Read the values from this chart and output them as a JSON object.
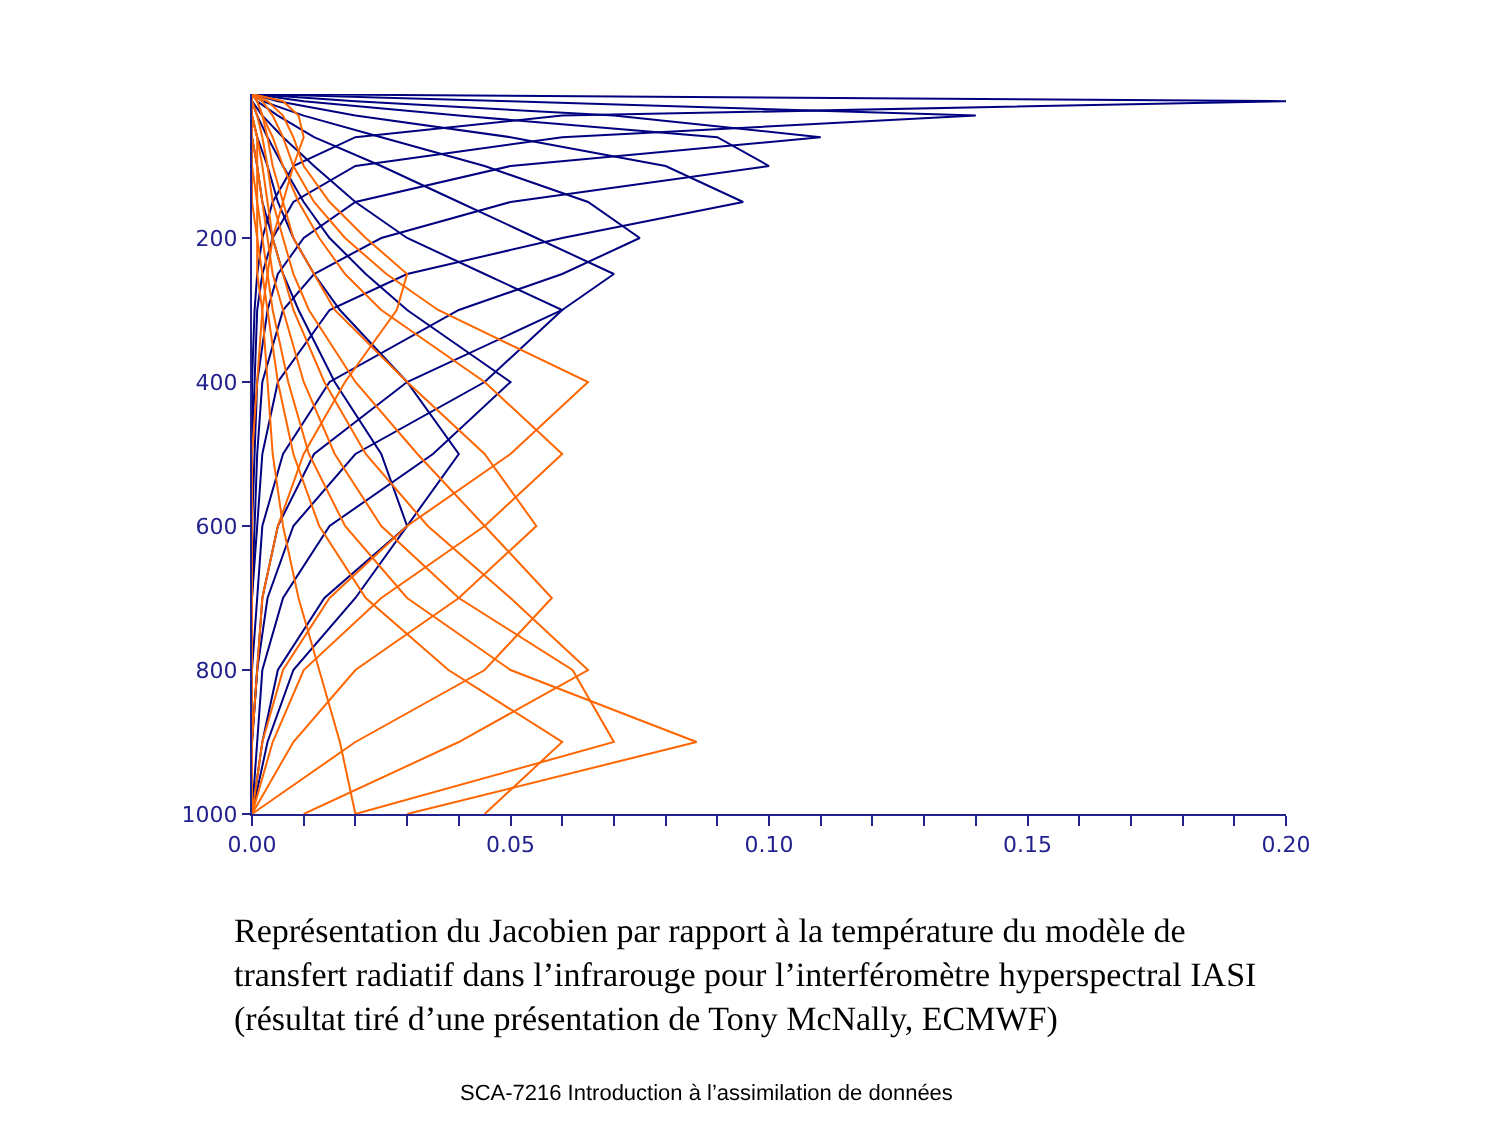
{
  "chart_data": {
    "type": "line",
    "annotations": [
      "Représentation du Jacobien par rapport à la température du modèle de\ntransfert radiatif dans l’infrarouge pour l’interféromètre hyperspectral IASI\n(résultat tiré d’une présentation de Tony McNally, ECMWF)",
      "SCA-7216 Introduction à l’assimilation de données"
    ],
    "xlim": [
      0,
      0.2
    ],
    "ylim": [
      1000,
      0
    ],
    "xticks": [
      {
        "value": 0,
        "label": "0.00"
      },
      {
        "value": 0.01,
        "label": null
      },
      {
        "value": 0.02,
        "label": null
      },
      {
        "value": 0.03,
        "label": null
      },
      {
        "value": 0.04,
        "label": null
      },
      {
        "value": 0.05,
        "label": "0.05"
      },
      {
        "value": 0.06,
        "label": null
      },
      {
        "value": 0.07,
        "label": null
      },
      {
        "value": 0.08,
        "label": null
      },
      {
        "value": 0.09,
        "label": null
      },
      {
        "value": 0.1,
        "label": "0.10"
      },
      {
        "value": 0.11,
        "label": null
      },
      {
        "value": 0.12,
        "label": null
      },
      {
        "value": 0.13,
        "label": null
      },
      {
        "value": 0.14,
        "label": null
      },
      {
        "value": 0.15,
        "label": "0.15"
      },
      {
        "value": 0.16,
        "label": null
      },
      {
        "value": 0.17,
        "label": null
      },
      {
        "value": 0.18,
        "label": null
      },
      {
        "value": 0.19,
        "label": null
      },
      {
        "value": 0.2,
        "label": "0.20"
      }
    ],
    "yticks": [
      200,
      400,
      600,
      800,
      1000
    ],
    "marker": "none",
    "line_style": "solid",
    "series": [
      {
        "color": "#000080",
        "x": [
          0,
          0.2,
          0.06,
          0.02,
          0.008,
          0.004,
          0.002,
          0.001,
          0.0005,
          0,
          0,
          0,
          0,
          0,
          0,
          0
        ],
        "values": [
          0,
          10,
          30,
          60,
          100,
          150,
          200,
          250,
          300,
          400,
          500,
          600,
          700,
          800,
          900,
          1000
        ]
      },
      {
        "color": "#000080",
        "x": [
          0,
          0.05,
          0.14,
          0.06,
          0.02,
          0.008,
          0.004,
          0.002,
          0.001,
          0.0005,
          0,
          0,
          0,
          0,
          0,
          0
        ],
        "values": [
          0,
          10,
          30,
          60,
          100,
          150,
          200,
          250,
          300,
          400,
          500,
          600,
          700,
          800,
          900,
          1000
        ]
      },
      {
        "color": "#000080",
        "x": [
          0,
          0.02,
          0.07,
          0.11,
          0.05,
          0.02,
          0.01,
          0.005,
          0.003,
          0.001,
          0.0005,
          0,
          0,
          0,
          0,
          0
        ],
        "values": [
          0,
          10,
          30,
          60,
          100,
          150,
          200,
          250,
          300,
          400,
          500,
          600,
          700,
          800,
          900,
          1000
        ]
      },
      {
        "color": "#000080",
        "x": [
          0,
          0.01,
          0.04,
          0.09,
          0.1,
          0.05,
          0.025,
          0.012,
          0.006,
          0.002,
          0.001,
          0.0005,
          0,
          0,
          0,
          0
        ],
        "values": [
          0,
          10,
          30,
          60,
          100,
          150,
          200,
          250,
          300,
          400,
          500,
          600,
          700,
          800,
          900,
          1000
        ]
      },
      {
        "color": "#000080",
        "x": [
          0,
          0.005,
          0.02,
          0.05,
          0.08,
          0.095,
          0.06,
          0.03,
          0.015,
          0.005,
          0.002,
          0.001,
          0,
          0,
          0,
          0
        ],
        "values": [
          0,
          10,
          30,
          60,
          100,
          150,
          200,
          250,
          300,
          400,
          500,
          600,
          700,
          800,
          900,
          1000
        ]
      },
      {
        "color": "#000080",
        "x": [
          0,
          0.002,
          0.01,
          0.025,
          0.045,
          0.065,
          0.075,
          0.06,
          0.04,
          0.015,
          0.006,
          0.002,
          0.001,
          0,
          0,
          0
        ],
        "values": [
          0,
          10,
          30,
          60,
          100,
          150,
          200,
          250,
          300,
          400,
          500,
          600,
          700,
          800,
          900,
          1000
        ]
      },
      {
        "color": "#000080",
        "x": [
          0,
          0.001,
          0.005,
          0.012,
          0.025,
          0.04,
          0.055,
          0.07,
          0.06,
          0.03,
          0.012,
          0.005,
          0.002,
          0.001,
          0,
          0
        ],
        "values": [
          0,
          10,
          30,
          60,
          100,
          150,
          200,
          250,
          300,
          400,
          500,
          600,
          700,
          800,
          900,
          1000
        ]
      },
      {
        "color": "#000080",
        "x": [
          0,
          0,
          0.002,
          0.006,
          0.012,
          0.02,
          0.03,
          0.045,
          0.06,
          0.045,
          0.02,
          0.008,
          0.003,
          0.001,
          0,
          0
        ],
        "values": [
          0,
          10,
          30,
          60,
          100,
          150,
          200,
          250,
          300,
          400,
          500,
          600,
          700,
          800,
          900,
          1000
        ]
      },
      {
        "color": "#000080",
        "x": [
          0,
          0,
          0.001,
          0.003,
          0.006,
          0.01,
          0.015,
          0.022,
          0.03,
          0.05,
          0.035,
          0.015,
          0.006,
          0.002,
          0.001,
          0
        ],
        "values": [
          0,
          10,
          30,
          60,
          100,
          150,
          200,
          250,
          300,
          400,
          500,
          600,
          700,
          800,
          900,
          1000
        ]
      },
      {
        "color": "#000080",
        "x": [
          0,
          0,
          0,
          0.001,
          0.003,
          0.005,
          0.008,
          0.012,
          0.017,
          0.03,
          0.04,
          0.03,
          0.014,
          0.005,
          0.002,
          0
        ],
        "values": [
          0,
          10,
          30,
          60,
          100,
          150,
          200,
          250,
          300,
          400,
          500,
          600,
          700,
          800,
          900,
          1000
        ]
      },
      {
        "color": "#000080",
        "x": [
          0,
          0,
          0,
          0,
          0.001,
          0.002,
          0.004,
          0.006,
          0.009,
          0.016,
          0.025,
          0.03,
          0.02,
          0.008,
          0.003,
          0
        ],
        "values": [
          0,
          10,
          30,
          60,
          100,
          150,
          200,
          250,
          300,
          400,
          500,
          600,
          700,
          800,
          900,
          1000
        ]
      },
      {
        "color": "#ff6600",
        "x": [
          0,
          0.006,
          0.009,
          0.01,
          0.008,
          0.006,
          0.004,
          0.003,
          0.002,
          0.001,
          0,
          0,
          0,
          0,
          0,
          0
        ],
        "values": [
          0,
          10,
          30,
          60,
          100,
          150,
          200,
          250,
          300,
          400,
          500,
          600,
          700,
          800,
          900,
          1000
        ]
      },
      {
        "color": "#ff6600",
        "x": [
          0,
          0.003,
          0.006,
          0.008,
          0.01,
          0.015,
          0.022,
          0.03,
          0.028,
          0.018,
          0.01,
          0.005,
          0.002,
          0.001,
          0,
          0
        ],
        "values": [
          0,
          10,
          30,
          60,
          100,
          150,
          200,
          250,
          300,
          400,
          500,
          600,
          700,
          800,
          900,
          1000
        ]
      },
      {
        "color": "#ff6600",
        "x": [
          0,
          0.002,
          0.004,
          0.006,
          0.008,
          0.012,
          0.018,
          0.026,
          0.036,
          0.065,
          0.05,
          0.03,
          0.015,
          0.006,
          0.002,
          0
        ],
        "values": [
          0,
          10,
          30,
          60,
          100,
          150,
          200,
          250,
          300,
          400,
          500,
          600,
          700,
          800,
          900,
          1000
        ]
      },
      {
        "color": "#ff6600",
        "x": [
          0,
          0.001,
          0.002,
          0.004,
          0.006,
          0.009,
          0.013,
          0.018,
          0.025,
          0.045,
          0.06,
          0.045,
          0.025,
          0.01,
          0.004,
          0
        ],
        "values": [
          0,
          10,
          30,
          60,
          100,
          150,
          200,
          250,
          300,
          400,
          500,
          600,
          700,
          800,
          900,
          1000
        ]
      },
      {
        "color": "#ff6600",
        "x": [
          0,
          0.001,
          0.002,
          0.003,
          0.004,
          0.006,
          0.008,
          0.012,
          0.016,
          0.03,
          0.045,
          0.055,
          0.04,
          0.02,
          0.008,
          0
        ],
        "values": [
          0,
          10,
          30,
          60,
          100,
          150,
          200,
          250,
          300,
          400,
          500,
          600,
          700,
          800,
          900,
          1000
        ]
      },
      {
        "color": "#ff6600",
        "x": [
          0,
          0,
          0.001,
          0.002,
          0.003,
          0.004,
          0.006,
          0.008,
          0.011,
          0.02,
          0.032,
          0.045,
          0.058,
          0.045,
          0.02,
          0
        ],
        "values": [
          0,
          10,
          30,
          60,
          100,
          150,
          200,
          250,
          300,
          400,
          500,
          600,
          700,
          800,
          900,
          1000
        ]
      },
      {
        "color": "#ff6600",
        "x": [
          0,
          0,
          0,
          0.001,
          0.002,
          0.003,
          0.004,
          0.006,
          0.008,
          0.014,
          0.022,
          0.034,
          0.05,
          0.065,
          0.04,
          0.01
        ],
        "values": [
          0,
          10,
          30,
          60,
          100,
          150,
          200,
          250,
          300,
          400,
          500,
          600,
          700,
          800,
          900,
          1000
        ]
      },
      {
        "color": "#ff6600",
        "x": [
          0,
          0,
          0,
          0.001,
          0.001,
          0.002,
          0.003,
          0.004,
          0.006,
          0.01,
          0.016,
          0.025,
          0.04,
          0.062,
          0.07,
          0.02
        ],
        "values": [
          0,
          10,
          30,
          60,
          100,
          150,
          200,
          250,
          300,
          400,
          500,
          600,
          700,
          800,
          900,
          1000
        ]
      },
      {
        "color": "#ff6600",
        "x": [
          0,
          0,
          0,
          0,
          0.001,
          0.001,
          0.002,
          0.003,
          0.004,
          0.007,
          0.011,
          0.018,
          0.03,
          0.05,
          0.086,
          0.03
        ],
        "values": [
          0,
          10,
          30,
          60,
          100,
          150,
          200,
          250,
          300,
          400,
          500,
          600,
          700,
          800,
          900,
          1000
        ]
      },
      {
        "color": "#ff6600",
        "x": [
          0,
          0,
          0,
          0,
          0,
          0.001,
          0.001,
          0.002,
          0.003,
          0.005,
          0.008,
          0.013,
          0.022,
          0.038,
          0.06,
          0.045
        ],
        "values": [
          0,
          10,
          30,
          60,
          100,
          150,
          200,
          250,
          300,
          400,
          500,
          600,
          700,
          800,
          900,
          1000
        ]
      },
      {
        "color": "#ff6600",
        "x": [
          0,
          0,
          0,
          0,
          0,
          0,
          0.001,
          0.001,
          0.002,
          0.003,
          0.004,
          0.006,
          0.009,
          0.013,
          0.017,
          0.02
        ],
        "values": [
          0,
          10,
          30,
          60,
          100,
          150,
          200,
          250,
          300,
          400,
          500,
          600,
          700,
          800,
          900,
          1000
        ]
      }
    ]
  }
}
